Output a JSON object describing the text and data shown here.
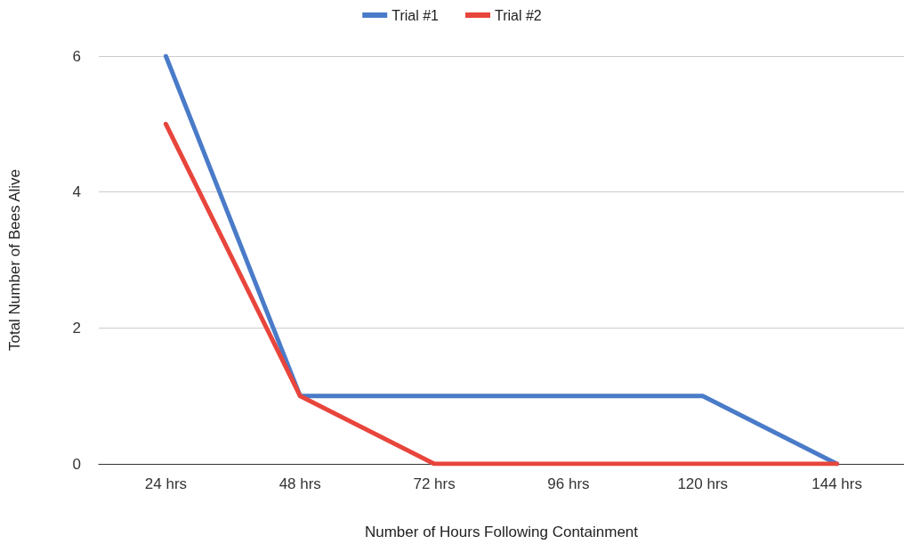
{
  "chart_data": {
    "type": "line",
    "xlabel": "Number of Hours Following Containment",
    "ylabel": "Total Number of Bees Alive",
    "categories": [
      "24 hrs",
      "48 hrs",
      "72 hrs",
      "96 hrs",
      "120 hrs",
      "144 hrs"
    ],
    "series": [
      {
        "name": "Trial #1",
        "color": "#4a7bc8",
        "values": [
          6,
          1,
          1,
          1,
          1,
          0
        ]
      },
      {
        "name": "Trial #2",
        "color": "#e8453c",
        "values": [
          5,
          1,
          0,
          0,
          0,
          0
        ]
      }
    ],
    "ylim": [
      0,
      6
    ],
    "yticks": [
      0,
      2,
      4,
      6
    ],
    "grid": "y",
    "legend": "top",
    "marker": "none",
    "line_style": "solid"
  }
}
